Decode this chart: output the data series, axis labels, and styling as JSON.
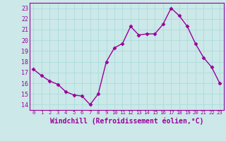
{
  "x": [
    0,
    1,
    2,
    3,
    4,
    5,
    6,
    7,
    8,
    9,
    10,
    11,
    12,
    13,
    14,
    15,
    16,
    17,
    18,
    19,
    20,
    21,
    22,
    23
  ],
  "y": [
    17.3,
    16.7,
    16.2,
    15.9,
    15.2,
    14.9,
    14.8,
    14.0,
    15.0,
    18.0,
    19.3,
    19.7,
    21.3,
    20.5,
    20.6,
    20.6,
    21.5,
    23.0,
    22.3,
    21.3,
    19.7,
    18.4,
    17.5,
    16.0
  ],
  "line_color": "#990099",
  "marker": "D",
  "marker_size": 2.5,
  "bg_color": "#cce8e8",
  "grid_color": "#aadddd",
  "xlabel": "Windchill (Refroidissement éolien,°C)",
  "xlim": [
    -0.5,
    23.5
  ],
  "ylim": [
    13.5,
    23.5
  ],
  "yticks": [
    14,
    15,
    16,
    17,
    18,
    19,
    20,
    21,
    22,
    23
  ],
  "xticks": [
    0,
    1,
    2,
    3,
    4,
    5,
    6,
    7,
    8,
    9,
    10,
    11,
    12,
    13,
    14,
    15,
    16,
    17,
    18,
    19,
    20,
    21,
    22,
    23
  ],
  "tick_label_fontsize": 6.0,
  "xlabel_fontsize": 7.0,
  "line_width": 1.0
}
